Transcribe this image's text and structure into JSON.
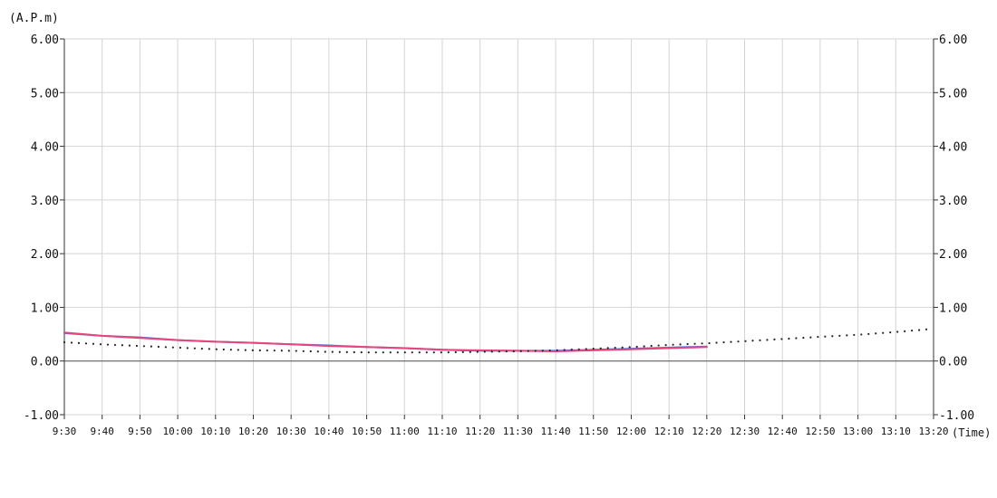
{
  "chart_data": {
    "type": "line",
    "y_unit_label": "(A.P.m)",
    "x_unit_label": "(Time)",
    "ylim": [
      -1.0,
      6.0
    ],
    "y_ticks": [
      -1.0,
      0.0,
      1.0,
      2.0,
      3.0,
      4.0,
      5.0,
      6.0
    ],
    "y_tick_labels": [
      "-1.00",
      "0.00",
      "1.00",
      "2.00",
      "3.00",
      "4.00",
      "5.00",
      "6.00"
    ],
    "x_range": [
      "9:30",
      "13:20"
    ],
    "x_tick_labels": [
      "9:30",
      "9:40",
      "9:50",
      "10:00",
      "10:10",
      "10:20",
      "10:30",
      "10:40",
      "10:50",
      "11:00",
      "11:10",
      "11:20",
      "11:30",
      "11:40",
      "11:50",
      "12:00",
      "12:10",
      "12:20",
      "12:30",
      "12:40",
      "12:50",
      "13:00",
      "13:10",
      "13:20"
    ],
    "grid": true,
    "zero_line": true,
    "colors": {
      "grid": "#d4d4d4",
      "axis": "#333333",
      "zero_line": "#555555",
      "series_blue": "#5b6fd6",
      "series_pink": "#e8457a",
      "series_dotted": "#222222"
    },
    "series": [
      {
        "color": "#5b6fd6",
        "style": "solid",
        "x": [
          "9:30",
          "9:40",
          "9:50",
          "10:00",
          "10:10",
          "10:20",
          "10:30",
          "10:40",
          "10:50",
          "11:00",
          "11:10",
          "11:20",
          "11:30",
          "11:40",
          "11:50",
          "12:00",
          "12:10",
          "12:20"
        ],
        "y": [
          0.52,
          0.47,
          0.44,
          0.39,
          0.36,
          0.34,
          0.31,
          0.29,
          0.26,
          0.24,
          0.21,
          0.19,
          0.19,
          0.19,
          0.21,
          0.23,
          0.25,
          0.27
        ]
      },
      {
        "color": "#e8457a",
        "style": "solid",
        "x": [
          "9:30",
          "9:40",
          "9:50",
          "10:00",
          "10:10",
          "10:20",
          "10:30",
          "10:40",
          "10:50",
          "11:00",
          "11:10",
          "11:20",
          "11:30",
          "11:40",
          "11:50",
          "12:00",
          "12:10",
          "12:20"
        ],
        "y": [
          0.53,
          0.47,
          0.43,
          0.39,
          0.36,
          0.34,
          0.31,
          0.28,
          0.26,
          0.24,
          0.21,
          0.2,
          0.19,
          0.18,
          0.2,
          0.22,
          0.24,
          0.26
        ]
      },
      {
        "color": "#222222",
        "style": "dotted",
        "x": [
          "9:30",
          "9:40",
          "9:50",
          "10:00",
          "10:10",
          "10:20",
          "10:30",
          "10:40",
          "10:50",
          "11:00",
          "11:10",
          "11:20",
          "11:30",
          "11:40",
          "11:50",
          "12:00",
          "12:10",
          "12:20",
          "12:30",
          "12:40",
          "12:50",
          "13:00",
          "13:10",
          "13:20"
        ],
        "y": [
          0.35,
          0.31,
          0.28,
          0.25,
          0.22,
          0.2,
          0.19,
          0.17,
          0.16,
          0.16,
          0.16,
          0.17,
          0.18,
          0.2,
          0.23,
          0.26,
          0.3,
          0.33,
          0.37,
          0.41,
          0.45,
          0.49,
          0.54,
          0.6
        ]
      }
    ]
  }
}
